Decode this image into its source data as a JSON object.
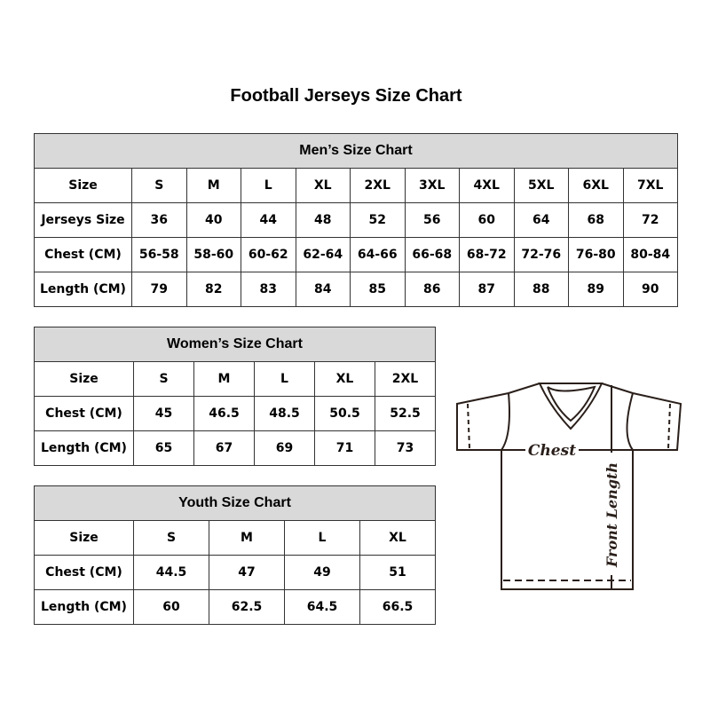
{
  "title": "Football Jerseys Size Chart",
  "men": {
    "heading": "Men’s Size Chart",
    "rows": [
      {
        "label": "Size",
        "values": [
          "S",
          "M",
          "L",
          "XL",
          "2XL",
          "3XL",
          "4XL",
          "5XL",
          "6XL",
          "7XL"
        ]
      },
      {
        "label": "Jerseys Size",
        "values": [
          "36",
          "40",
          "44",
          "48",
          "52",
          "56",
          "60",
          "64",
          "68",
          "72"
        ]
      },
      {
        "label": "Chest (CM)",
        "values": [
          "56-58",
          "58-60",
          "60-62",
          "62-64",
          "64-66",
          "66-68",
          "68-72",
          "72-76",
          "76-80",
          "80-84"
        ]
      },
      {
        "label": "Length (CM)",
        "values": [
          "79",
          "82",
          "83",
          "84",
          "85",
          "86",
          "87",
          "88",
          "89",
          "90"
        ]
      }
    ]
  },
  "women": {
    "heading": "Women’s Size Chart",
    "rows": [
      {
        "label": "Size",
        "values": [
          "S",
          "M",
          "L",
          "XL",
          "2XL"
        ]
      },
      {
        "label": "Chest (CM)",
        "values": [
          "45",
          "46.5",
          "48.5",
          "50.5",
          "52.5"
        ]
      },
      {
        "label": "Length (CM)",
        "values": [
          "65",
          "67",
          "69",
          "71",
          "73"
        ]
      }
    ]
  },
  "youth": {
    "heading": "Youth Size Chart",
    "rows": [
      {
        "label": "Size",
        "values": [
          "S",
          "M",
          "L",
          "XL"
        ]
      },
      {
        "label": "Chest (CM)",
        "values": [
          "44.5",
          "47",
          "49",
          "51"
        ]
      },
      {
        "label": "Length (CM)",
        "values": [
          "60",
          "62.5",
          "64.5",
          "66.5"
        ]
      }
    ]
  },
  "diagram": {
    "chest_label": "Chest",
    "length_label": "Front Length"
  },
  "colors": {
    "header_bg": "#d9d9d9",
    "border": "#333333",
    "diagram_stroke": "#2a1f1a"
  }
}
